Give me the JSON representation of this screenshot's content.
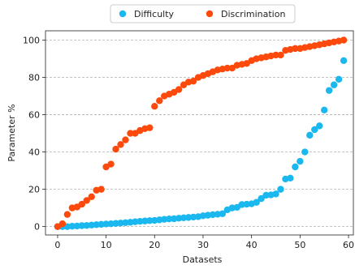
{
  "chart_data": {
    "type": "scatter",
    "title": "",
    "xlabel": "Datasets",
    "ylabel": "Parameter %",
    "xlim": [
      -2.5,
      61
    ],
    "ylim": [
      -4.5,
      105
    ],
    "xticks": [
      0,
      10,
      20,
      30,
      40,
      50,
      60
    ],
    "yticks": [
      0,
      20,
      40,
      60,
      80,
      100
    ],
    "grid": "horizontal dashed",
    "legend_position": "top-center",
    "series": [
      {
        "name": "Difficulty",
        "color": "#1ab8ee",
        "x": [
          0,
          1,
          2,
          3,
          4,
          5,
          6,
          7,
          8,
          9,
          10,
          11,
          12,
          13,
          14,
          15,
          16,
          17,
          18,
          19,
          20,
          21,
          22,
          23,
          24,
          25,
          26,
          27,
          28,
          29,
          30,
          31,
          32,
          33,
          34,
          35,
          36,
          37,
          38,
          39,
          40,
          41,
          42,
          43,
          44,
          45,
          46,
          47,
          48,
          49,
          50,
          51,
          52,
          53,
          54,
          55,
          56,
          57,
          58,
          59
        ],
        "y": [
          0,
          0,
          0,
          0.2,
          0.3,
          0.5,
          0.6,
          0.8,
          1.0,
          1.2,
          1.4,
          1.5,
          1.7,
          1.9,
          2.1,
          2.3,
          2.6,
          2.8,
          3.0,
          3.2,
          3.3,
          3.6,
          3.9,
          4.1,
          4.2,
          4.5,
          4.7,
          4.9,
          5.1,
          5.3,
          5.8,
          6.1,
          6.4,
          6.6,
          6.9,
          9.0,
          10.0,
          10.3,
          11.8,
          12.0,
          12.2,
          13.0,
          15.0,
          16.8,
          17.0,
          17.5,
          20.0,
          25.5,
          26.0,
          32.0,
          35.0,
          40.0,
          49.0,
          52.0,
          54.0,
          62.5,
          73.0,
          76.0,
          79.0,
          89.0
        ]
      },
      {
        "name": "Discrimination",
        "color": "#fd4a0c",
        "x": [
          0,
          1,
          2,
          3,
          4,
          5,
          6,
          7,
          8,
          9,
          10,
          11,
          12,
          13,
          14,
          15,
          16,
          17,
          18,
          19,
          20,
          21,
          22,
          23,
          24,
          25,
          26,
          27,
          28,
          29,
          30,
          31,
          32,
          33,
          34,
          35,
          36,
          37,
          38,
          39,
          40,
          41,
          42,
          43,
          44,
          45,
          46,
          47,
          48,
          49,
          50,
          51,
          52,
          53,
          54,
          55,
          56,
          57,
          58,
          59
        ],
        "y": [
          0,
          1.5,
          6.5,
          10,
          10.5,
          12,
          14,
          16,
          19.5,
          20,
          32,
          33.5,
          41.5,
          44,
          46.5,
          50,
          50,
          51.5,
          52.5,
          53,
          64.5,
          67.5,
          70,
          71,
          72,
          73.5,
          76,
          77.5,
          78,
          80,
          81,
          82,
          83,
          84,
          84.5,
          85,
          85,
          86.5,
          87,
          87.5,
          89,
          90,
          90.5,
          91,
          91.5,
          92,
          92,
          94.5,
          95,
          95.5,
          95.5,
          96,
          96.5,
          97,
          97.5,
          98,
          98.5,
          99,
          99.5,
          100
        ]
      }
    ]
  }
}
